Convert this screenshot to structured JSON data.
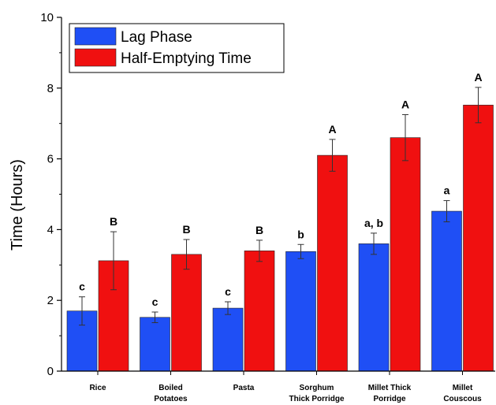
{
  "chart_data": {
    "type": "bar",
    "ylabel": "Time (Hours)",
    "xlabel": "",
    "ylim": [
      0,
      10
    ],
    "yticks": [
      0,
      2,
      4,
      6,
      8,
      10
    ],
    "grid": false,
    "legend_position": "top-left",
    "categories": [
      [
        "Rice"
      ],
      [
        "Boiled",
        "Potatoes"
      ],
      [
        "Pasta"
      ],
      [
        "Sorghum",
        "Thick Porridge"
      ],
      [
        "Millet Thick",
        "Porridge"
      ],
      [
        "Millet",
        "Couscous"
      ]
    ],
    "series": [
      {
        "name": "Lag Phase",
        "color": "#1f4ff5",
        "values": [
          1.7,
          1.52,
          1.78,
          3.38,
          3.6,
          4.52
        ],
        "errors": [
          0.4,
          0.15,
          0.18,
          0.2,
          0.3,
          0.3
        ],
        "labels": [
          "c",
          "c",
          "c",
          "b",
          "a, b",
          "a"
        ]
      },
      {
        "name": "Half-Emptying Time",
        "color": "#f01010",
        "values": [
          3.12,
          3.3,
          3.4,
          6.1,
          6.6,
          7.52
        ],
        "errors": [
          0.82,
          0.42,
          0.3,
          0.45,
          0.65,
          0.5
        ],
        "labels": [
          "B",
          "B",
          "B",
          "A",
          "A",
          "A"
        ]
      }
    ]
  }
}
